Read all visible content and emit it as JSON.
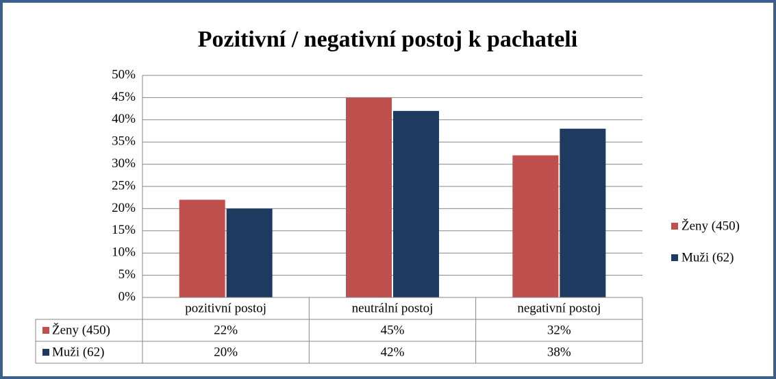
{
  "chart_data": {
    "type": "bar",
    "title": "Pozitivní / negativní postoj k pachateli",
    "categories": [
      "pozitivní postoj",
      "neutrální postoj",
      "negativní postoj"
    ],
    "series": [
      {
        "name": "Ženy (450)",
        "color": "#c0504d",
        "values": [
          22,
          45,
          32
        ],
        "value_labels": [
          "22%",
          "45%",
          "32%"
        ]
      },
      {
        "name": "Muži (62)",
        "color": "#1f3a60",
        "values": [
          20,
          42,
          38
        ],
        "value_labels": [
          "20%",
          "42%",
          "38%"
        ]
      }
    ],
    "ylim": [
      0,
      50
    ],
    "yticks": [
      {
        "value": 0,
        "label": "0%"
      },
      {
        "value": 5,
        "label": "5%"
      },
      {
        "value": 10,
        "label": "10%"
      },
      {
        "value": 15,
        "label": "15%"
      },
      {
        "value": 20,
        "label": "20%"
      },
      {
        "value": 25,
        "label": "25%"
      },
      {
        "value": 30,
        "label": "30%"
      },
      {
        "value": 35,
        "label": "35%"
      },
      {
        "value": 40,
        "label": "40%"
      },
      {
        "value": 45,
        "label": "45%"
      },
      {
        "value": 50,
        "label": "50%"
      }
    ],
    "grid": true,
    "legend": "right",
    "data_table": true
  }
}
